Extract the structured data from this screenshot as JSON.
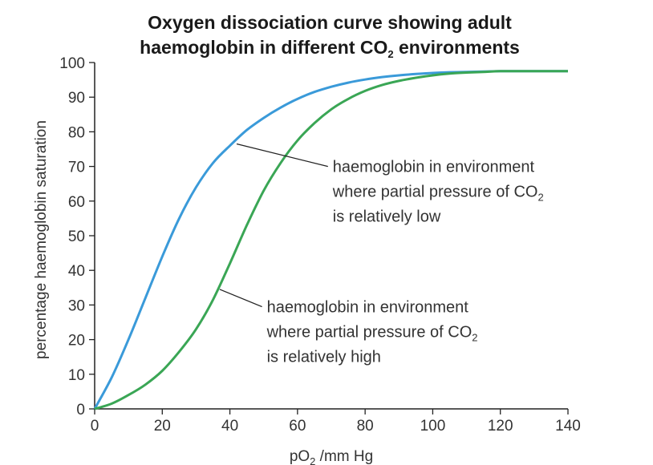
{
  "chart_data": {
    "type": "line",
    "title_lines": [
      {
        "text": "Oxygen dissociation curve showing adult",
        "sub": "",
        "tail": ""
      },
      {
        "text": "haemoglobin in different CO",
        "sub": "2",
        "tail": " environments"
      }
    ],
    "xlabel": {
      "text": "pO",
      "sub": "2",
      "tail": " /mm Hg"
    },
    "ylabel": "percentage haemoglobin saturation",
    "xlim": [
      0,
      140
    ],
    "ylim": [
      0,
      100
    ],
    "xticks": [
      0,
      20,
      40,
      60,
      80,
      100,
      120,
      140
    ],
    "yticks": [
      0,
      10,
      20,
      30,
      40,
      50,
      60,
      70,
      80,
      90,
      100
    ],
    "grid": false,
    "series": [
      {
        "color": "#3a9ad9",
        "x": [
          0,
          5,
          10,
          15,
          20,
          25,
          30,
          35,
          40,
          45,
          50,
          55,
          60,
          65,
          70,
          75,
          80,
          85,
          90,
          95,
          100,
          105,
          110,
          115,
          120,
          125,
          130,
          135,
          140
        ],
        "y": [
          0,
          9,
          20,
          32,
          44,
          55,
          64,
          71,
          76,
          80.5,
          84,
          87,
          89.5,
          91.5,
          93,
          94.2,
          95.1,
          95.8,
          96.3,
          96.7,
          97,
          97.2,
          97.3,
          97.4,
          97.5,
          97.5,
          97.5,
          97.5,
          97.5
        ]
      },
      {
        "color": "#3aa655",
        "x": [
          0,
          5,
          10,
          15,
          20,
          25,
          30,
          35,
          40,
          45,
          50,
          55,
          60,
          65,
          70,
          75,
          80,
          85,
          90,
          95,
          100,
          105,
          110,
          115,
          120,
          125,
          130,
          135,
          140
        ],
        "y": [
          0,
          1.5,
          4,
          7,
          11,
          16.5,
          23,
          31.5,
          42,
          53,
          63,
          71,
          77.5,
          82.5,
          86.5,
          89.5,
          91.8,
          93.5,
          94.7,
          95.6,
          96.3,
          96.8,
          97.1,
          97.3,
          97.5,
          97.5,
          97.5,
          97.5,
          97.5
        ]
      }
    ],
    "annotations": [
      {
        "series_index": 0,
        "point": [
          42,
          76.5
        ],
        "line_end": [
          69,
          70
        ],
        "lines": [
          {
            "text": "haemoglobin in environment",
            "sub": "",
            "tail": ""
          },
          {
            "text": "where partial pressure of CO",
            "sub": "2",
            "tail": ""
          },
          {
            "text": "is relatively low",
            "sub": "",
            "tail": ""
          }
        ]
      },
      {
        "series_index": 1,
        "point": [
          37,
          34.5
        ],
        "line_end": [
          49.5,
          29.5
        ],
        "lines": [
          {
            "text": "haemoglobin in environment",
            "sub": "",
            "tail": ""
          },
          {
            "text": "where partial pressure of CO",
            "sub": "2",
            "tail": ""
          },
          {
            "text": "is relatively high",
            "sub": "",
            "tail": ""
          }
        ]
      }
    ]
  }
}
